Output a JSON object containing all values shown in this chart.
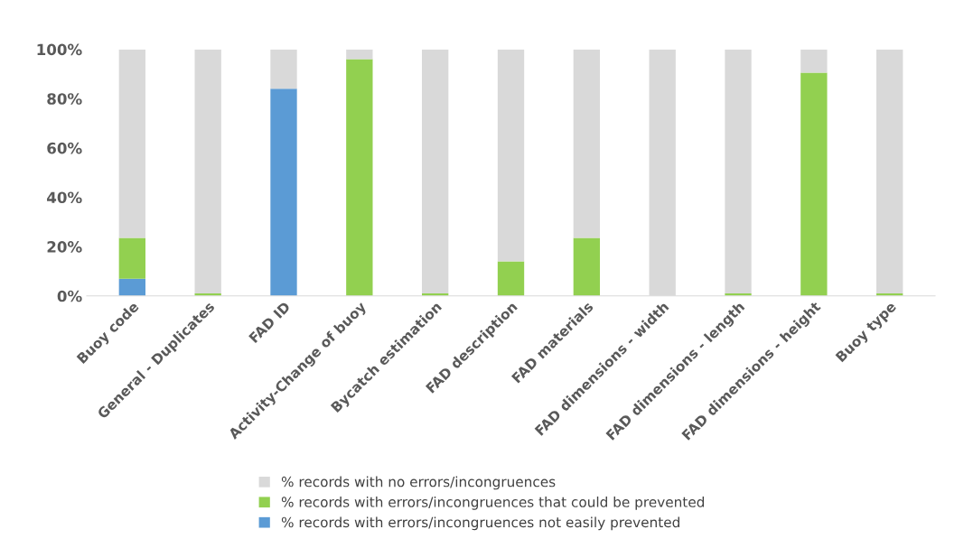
{
  "chart_data": {
    "type": "bar",
    "stacked": true,
    "categories": [
      "Buoy code",
      "General - Duplicates",
      "FAD ID",
      "Activity-Change of buoy",
      "Bycatch estimation",
      "FAD description",
      "FAD materials",
      "FAD dimensions - width",
      "FAD dimensions - length",
      "FAD dimensions - height",
      "Buoy type"
    ],
    "series": [
      {
        "name": "% records with errors/incongruences not easily prevented",
        "color": "#5b9bd5",
        "values": [
          7,
          0,
          84,
          0,
          0,
          0,
          0,
          0,
          0,
          0,
          0
        ]
      },
      {
        "name": "% records with errors/incongruences that could be prevented",
        "color": "#92d050",
        "values": [
          16.5,
          1,
          0,
          96,
          1,
          14,
          23.5,
          0,
          1,
          90.5,
          1
        ]
      },
      {
        "name": "% records with no errors/incongruences",
        "color": "#d9d9d9",
        "values": [
          76.5,
          99,
          16,
          4,
          99,
          86,
          76.5,
          100,
          99,
          9.5,
          99
        ]
      }
    ],
    "ylim": [
      0,
      100
    ],
    "yticks": [
      {
        "value": 0,
        "label": "0%"
      },
      {
        "value": 20,
        "label": "20%"
      },
      {
        "value": 40,
        "label": "40%"
      },
      {
        "value": 60,
        "label": "60%"
      },
      {
        "value": 80,
        "label": "80%"
      },
      {
        "value": 100,
        "label": "100%"
      }
    ],
    "grid": false,
    "legend": "bottom"
  }
}
